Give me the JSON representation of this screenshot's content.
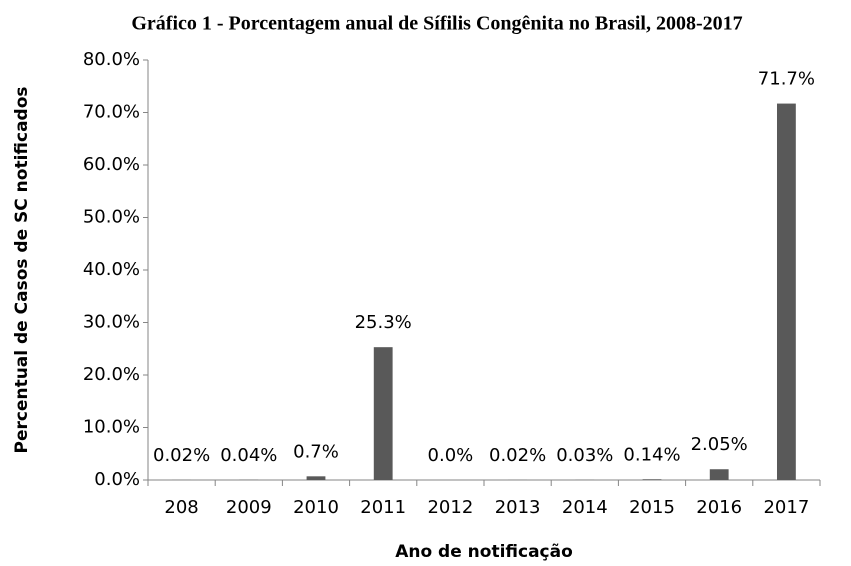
{
  "chart_data": {
    "type": "bar",
    "title": "Gráfico 1 - Porcentagem anual de Sífilis Congênita no Brasil, 2008-2017",
    "xlabel": "Ano de notificação",
    "ylabel": "Percentual de Casos de SC notificados",
    "categories": [
      "208",
      "2009",
      "2010",
      "2011",
      "2012",
      "2013",
      "2014",
      "2015",
      "2016",
      "2017"
    ],
    "values": [
      0.02,
      0.04,
      0.7,
      25.3,
      0.0,
      0.02,
      0.03,
      0.14,
      2.05,
      71.7
    ],
    "value_labels": [
      "0.02%",
      "0.04%",
      "0.7%",
      "25.3%",
      "0.0%",
      "0.02%",
      "0.03%",
      "0.14%",
      "2.05%",
      "71.7%"
    ],
    "color": "#595959",
    "ylim": [
      0,
      80
    ],
    "yticks": [
      {
        "value": 0,
        "label": "0.0%"
      },
      {
        "value": 10,
        "label": "10.0%"
      },
      {
        "value": 20,
        "label": "20.0%"
      },
      {
        "value": 30,
        "label": "30.0%"
      },
      {
        "value": 40,
        "label": "40.0%"
      },
      {
        "value": 50,
        "label": "50.0%"
      },
      {
        "value": 60,
        "label": "60.0%"
      },
      {
        "value": 70,
        "label": "70.0%"
      },
      {
        "value": 80,
        "label": "80.0%"
      }
    ],
    "grid": false
  }
}
